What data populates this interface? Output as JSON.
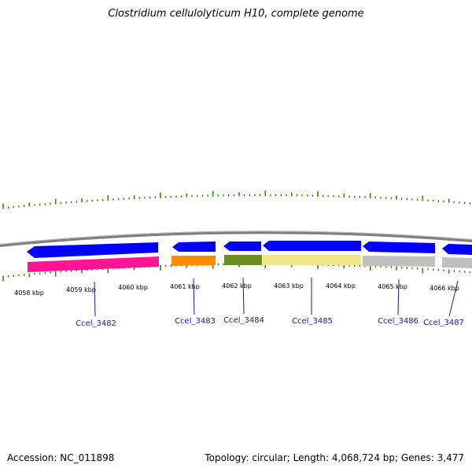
{
  "title": "Clostridium cellulolyticum H10, complete genome",
  "footer": {
    "accession": "Accession: NC_011898",
    "summary": "Topology: circular; Length: 4,068,724 bp; Genes: 3,477"
  },
  "colors": {
    "backbone": "#8a8a8a",
    "strand_arrows": "#0000ff",
    "tick_marks": "#2e8b00",
    "gene_label": "#1a1aa6"
  },
  "scale_labels": [
    "4058 kbp",
    "4059 kbp",
    "4060 kbp",
    "4061 kbp",
    "4062 kbp",
    "4063 kbp",
    "4064 kbp",
    "4065 kbp",
    "4066 kbp"
  ],
  "genes": [
    {
      "label": "Ccel_3482",
      "color": "#ff1493"
    },
    {
      "label": "Ccel_3483",
      "color": "#ff8c00"
    },
    {
      "label": "Ccel_3484",
      "color": "#6b8e23"
    },
    {
      "label": "Ccel_3485",
      "color": "#f0e68c"
    },
    {
      "label": "Ccel_3486",
      "color": "#c0c0c0"
    },
    {
      "label": "Ccel_3487",
      "color": "#c0c0c0"
    }
  ]
}
